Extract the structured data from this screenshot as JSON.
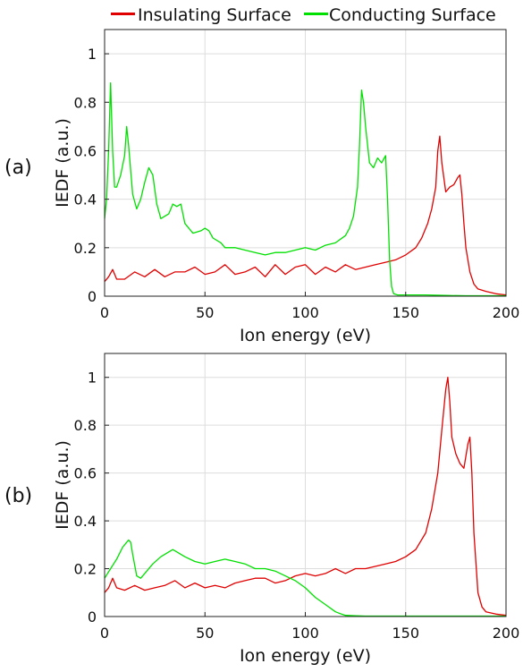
{
  "legend": [
    {
      "label": "Insulating Surface",
      "color": "#e00000"
    },
    {
      "label": "Conducting Surface",
      "color": "#00e000"
    }
  ],
  "chart_data": [
    {
      "type": "line",
      "panel_label": "(a)",
      "xlabel": "Ion energy (eV)",
      "ylabel": "IEDF (a.u.)",
      "xlim": [
        0,
        200
      ],
      "ylim": [
        0,
        1.1
      ],
      "xticks": [
        0,
        50,
        100,
        150,
        200
      ],
      "yticks": [
        0,
        0.2,
        0.4,
        0.6,
        0.8,
        1
      ],
      "grid": true,
      "series": [
        {
          "name": "Insulating Surface",
          "color": "#e00000",
          "x": [
            0,
            2,
            4,
            6,
            10,
            15,
            20,
            25,
            30,
            35,
            40,
            45,
            50,
            55,
            60,
            65,
            70,
            75,
            80,
            85,
            90,
            95,
            100,
            105,
            110,
            115,
            120,
            125,
            130,
            135,
            140,
            145,
            150,
            155,
            158,
            161,
            163,
            165,
            166,
            167,
            168,
            170,
            172,
            174,
            176,
            177,
            178,
            179,
            180,
            182,
            184,
            186,
            190,
            195,
            200
          ],
          "y": [
            0.06,
            0.08,
            0.11,
            0.07,
            0.07,
            0.1,
            0.08,
            0.11,
            0.08,
            0.1,
            0.1,
            0.12,
            0.09,
            0.1,
            0.13,
            0.09,
            0.1,
            0.12,
            0.08,
            0.13,
            0.09,
            0.12,
            0.13,
            0.09,
            0.12,
            0.1,
            0.13,
            0.11,
            0.12,
            0.13,
            0.14,
            0.15,
            0.17,
            0.2,
            0.24,
            0.3,
            0.36,
            0.45,
            0.6,
            0.66,
            0.55,
            0.43,
            0.45,
            0.46,
            0.49,
            0.5,
            0.42,
            0.3,
            0.2,
            0.1,
            0.05,
            0.03,
            0.02,
            0.01,
            0.005
          ]
        },
        {
          "name": "Conducting Surface",
          "color": "#00e000",
          "x": [
            0,
            1,
            2,
            3,
            4,
            5,
            6,
            8,
            10,
            11,
            12,
            14,
            16,
            18,
            20,
            22,
            24,
            26,
            28,
            32,
            34,
            36,
            38,
            40,
            44,
            48,
            50,
            52,
            54,
            58,
            60,
            65,
            70,
            75,
            80,
            85,
            90,
            95,
            100,
            105,
            110,
            115,
            120,
            122,
            124,
            126,
            127,
            128,
            129,
            130,
            132,
            134,
            136,
            138,
            140,
            141,
            142,
            143,
            144,
            146,
            150,
            160,
            170,
            180,
            190,
            200
          ],
          "y": [
            0.32,
            0.4,
            0.6,
            0.88,
            0.6,
            0.45,
            0.45,
            0.5,
            0.58,
            0.7,
            0.62,
            0.42,
            0.36,
            0.4,
            0.47,
            0.53,
            0.5,
            0.38,
            0.32,
            0.34,
            0.38,
            0.37,
            0.38,
            0.3,
            0.26,
            0.27,
            0.28,
            0.27,
            0.24,
            0.22,
            0.2,
            0.2,
            0.19,
            0.18,
            0.17,
            0.18,
            0.18,
            0.19,
            0.2,
            0.19,
            0.21,
            0.22,
            0.25,
            0.28,
            0.33,
            0.45,
            0.62,
            0.85,
            0.8,
            0.7,
            0.55,
            0.53,
            0.57,
            0.55,
            0.58,
            0.4,
            0.15,
            0.04,
            0.01,
            0.005,
            0.005,
            0.005,
            0.003,
            0.002,
            0.002,
            0.002
          ]
        }
      ]
    },
    {
      "type": "line",
      "panel_label": "(b)",
      "xlabel": "Ion energy (eV)",
      "ylabel": "IEDF (a.u.)",
      "xlim": [
        0,
        200
      ],
      "ylim": [
        0,
        1.1
      ],
      "xticks": [
        0,
        50,
        100,
        150,
        200
      ],
      "yticks": [
        0,
        0.2,
        0.4,
        0.6,
        0.8,
        1
      ],
      "grid": true,
      "series": [
        {
          "name": "Insulating Surface",
          "color": "#e00000",
          "x": [
            0,
            2,
            4,
            6,
            10,
            15,
            20,
            25,
            30,
            35,
            40,
            45,
            50,
            55,
            60,
            65,
            70,
            75,
            80,
            85,
            90,
            95,
            100,
            105,
            110,
            115,
            120,
            125,
            130,
            135,
            140,
            145,
            150,
            155,
            160,
            163,
            166,
            168,
            170,
            171,
            172,
            173,
            175,
            177,
            179,
            181,
            182,
            183,
            184,
            186,
            188,
            190,
            195,
            200
          ],
          "y": [
            0.1,
            0.12,
            0.16,
            0.12,
            0.11,
            0.13,
            0.11,
            0.12,
            0.13,
            0.15,
            0.12,
            0.14,
            0.12,
            0.13,
            0.12,
            0.14,
            0.15,
            0.16,
            0.16,
            0.14,
            0.15,
            0.17,
            0.18,
            0.17,
            0.18,
            0.2,
            0.18,
            0.2,
            0.2,
            0.21,
            0.22,
            0.23,
            0.25,
            0.28,
            0.35,
            0.45,
            0.6,
            0.78,
            0.95,
            1.0,
            0.9,
            0.75,
            0.68,
            0.64,
            0.62,
            0.72,
            0.75,
            0.6,
            0.35,
            0.1,
            0.04,
            0.02,
            0.01,
            0.005
          ]
        },
        {
          "name": "Conducting Surface",
          "color": "#00e000",
          "x": [
            0,
            3,
            6,
            9,
            11,
            12,
            13,
            14,
            16,
            18,
            20,
            24,
            28,
            32,
            34,
            36,
            40,
            45,
            50,
            55,
            60,
            65,
            70,
            75,
            80,
            85,
            90,
            95,
            100,
            105,
            110,
            115,
            118,
            120,
            125,
            130,
            140,
            150,
            160,
            170,
            180,
            190,
            200
          ],
          "y": [
            0.16,
            0.2,
            0.24,
            0.29,
            0.31,
            0.32,
            0.31,
            0.26,
            0.17,
            0.16,
            0.18,
            0.22,
            0.25,
            0.27,
            0.28,
            0.27,
            0.25,
            0.23,
            0.22,
            0.23,
            0.24,
            0.23,
            0.22,
            0.2,
            0.2,
            0.19,
            0.17,
            0.15,
            0.12,
            0.08,
            0.05,
            0.02,
            0.01,
            0.005,
            0.003,
            0.002,
            0.002,
            0.002,
            0.002,
            0.002,
            0.002,
            0.002,
            0.002
          ]
        }
      ]
    }
  ]
}
